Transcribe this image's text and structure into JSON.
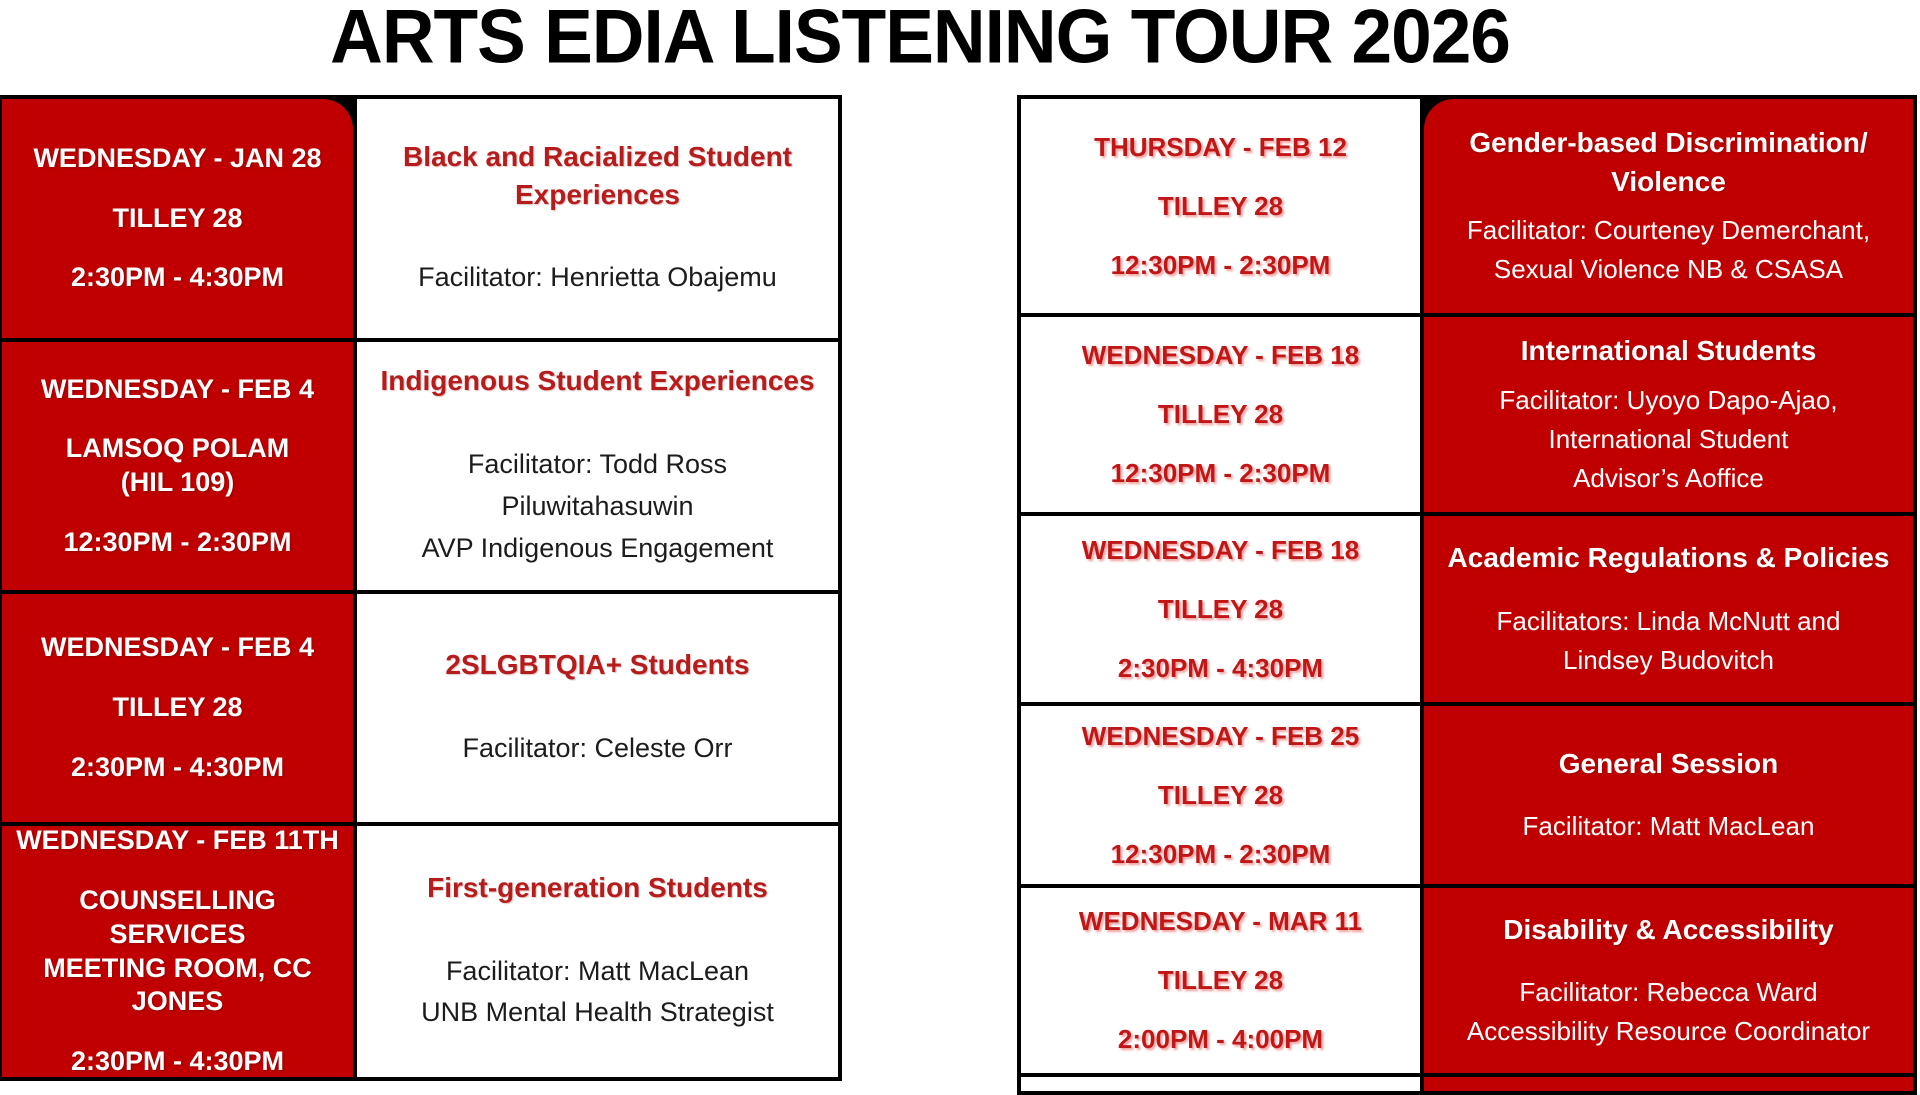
{
  "title": "ARTS EDIA LISTENING TOUR 2026",
  "colors": {
    "red_bg": "#c00000",
    "red_text": "#b71c1c",
    "date_red": "#c01616",
    "text_dark": "#1c1c1c",
    "border": "#000000"
  },
  "left": {
    "rows": [
      {
        "when": [
          "WEDNESDAY - JAN 28",
          "TILLEY 28",
          "2:30PM - 4:30PM"
        ],
        "topic": "Black and Racialized Student\nExperiences",
        "details": "Facilitator: Henrietta Obajemu"
      },
      {
        "when": [
          "WEDNESDAY - FEB 4",
          "LAMSOQ POLAM\n(HIL 109)",
          "12:30PM - 2:30PM"
        ],
        "topic": "Indigenous Student Experiences",
        "details": "Facilitator: Todd Ross\nPiluwitahasuwin\nAVP Indigenous Engagement"
      },
      {
        "when": [
          "WEDNESDAY - FEB 4",
          "TILLEY 28",
          "2:30PM - 4:30PM"
        ],
        "topic": "2SLGBTQIA+ Students",
        "details": "Facilitator: Celeste Orr"
      },
      {
        "when": [
          "WEDNESDAY - FEB 11TH",
          "COUNSELLING SERVICES\nMEETING ROOM, CC\nJONES",
          "2:30PM - 4:30PM"
        ],
        "topic": "First-generation Students",
        "details": "Facilitator: Matt MacLean\nUNB Mental Health Strategist"
      }
    ]
  },
  "right": {
    "rows": [
      {
        "when": [
          "THURSDAY - FEB 12",
          "TILLEY 28",
          "12:30PM - 2:30PM"
        ],
        "topic": "Gender-based Discrimination/\nViolence",
        "details": "Facilitator: Courteney Demerchant,\nSexual Violence NB & CSASA"
      },
      {
        "when": [
          "WEDNESDAY - FEB 18",
          "TILLEY 28",
          "12:30PM - 2:30PM"
        ],
        "topic": "International Students",
        "details": "Facilitator: Uyoyo Dapo-Ajao,\nInternational Student\nAdvisor’s Aoffice"
      },
      {
        "when": [
          "WEDNESDAY - FEB 18",
          "TILLEY 28",
          "2:30PM - 4:30PM"
        ],
        "topic": "Academic Regulations & Policies",
        "details": "Facilitators: Linda McNutt and\nLindsey Budovitch"
      },
      {
        "when": [
          "WEDNESDAY - FEB 25",
          "TILLEY 28",
          "12:30PM - 2:30PM"
        ],
        "topic": "General Session",
        "details": "Facilitator: Matt MacLean"
      },
      {
        "when": [
          "WEDNESDAY - MAR 11",
          "TILLEY 28",
          "2:00PM - 4:00PM"
        ],
        "topic": "Disability & Accessibility",
        "details": "Facilitator: Rebecca Ward\nAccessibility Resource Coordinator"
      }
    ]
  }
}
